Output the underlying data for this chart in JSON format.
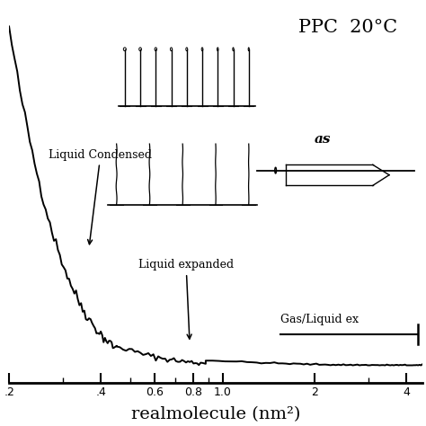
{
  "title": "PPC  20°C",
  "xlabel": "realmolecule (nm²)",
  "xlim": [
    0.2,
    4.5
  ],
  "ylim": [
    -0.05,
    1.05
  ],
  "curve_color": "#000000",
  "curve_lw": 1.4,
  "xticks": [
    0.2,
    0.4,
    0.6,
    0.8,
    1.0,
    2.0,
    4.0
  ],
  "xticklabels": [
    ".2",
    ".4",
    "0.6",
    "0.8",
    "1.0",
    "2",
    "4"
  ],
  "axis_label_fontsize": 14,
  "title_fontsize": 15,
  "annot_fontsize": 9,
  "background": "white",
  "lc_label": "Liquid Condensed",
  "le_label": "Liquid expanded",
  "gl_label": "Gas/Liquid ex"
}
